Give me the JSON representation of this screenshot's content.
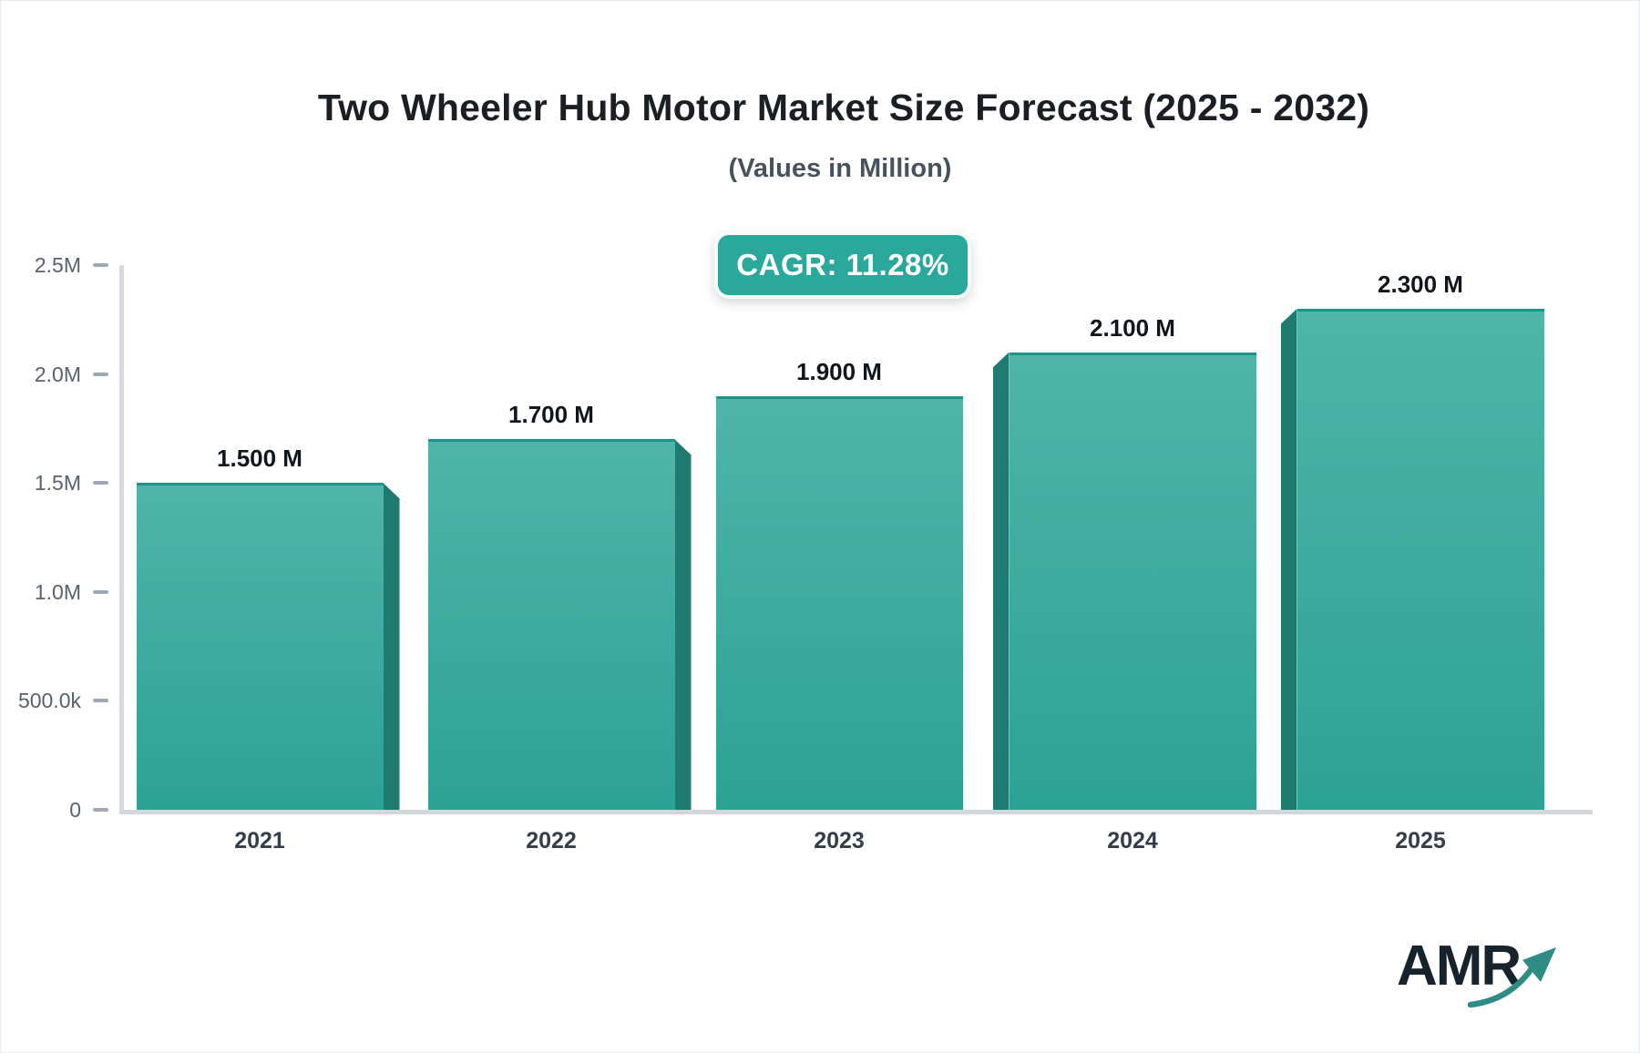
{
  "header": {
    "title": "Two Wheeler Hub Motor Market Size Forecast (2025 - 2032)",
    "subtitle": "(Values in Million)",
    "cagr_label": "CAGR: 11.28%"
  },
  "chart_data": {
    "type": "bar",
    "title": "Two Wheeler Hub Motor Market Size Forecast (2025 - 2032)",
    "subtitle": "(Values in Million)",
    "unit": "Million",
    "cagr_percent": 11.28,
    "categories": [
      "2021",
      "2022",
      "2023",
      "2024",
      "2025"
    ],
    "values": [
      1.5,
      1.7,
      1.9,
      2.1,
      2.3
    ],
    "value_labels": [
      "1.500 M",
      "1.700 M",
      "1.900 M",
      "2.100 M",
      "2.300 M"
    ],
    "ylim": [
      0,
      2.5
    ],
    "ytick_values": [
      0,
      0.5,
      1.0,
      1.5,
      2.0,
      2.5
    ],
    "ytick_labels": [
      "0",
      "500.0k",
      "1.0M",
      "1.5M",
      "2.0M",
      "2.5M"
    ],
    "grid": false,
    "legend": false,
    "colors": {
      "accent": "#2AA89B",
      "bar_top": "#50B4AA",
      "bar_bottom": "#2CA295",
      "bar_side": "#1F7A70",
      "bar_top_edge": "#1F958A",
      "axis": "#D6DAE0",
      "logo_arrow": "#2E8C85",
      "logo_text": "#16222C"
    }
  },
  "logo": {
    "text": "AMR"
  }
}
